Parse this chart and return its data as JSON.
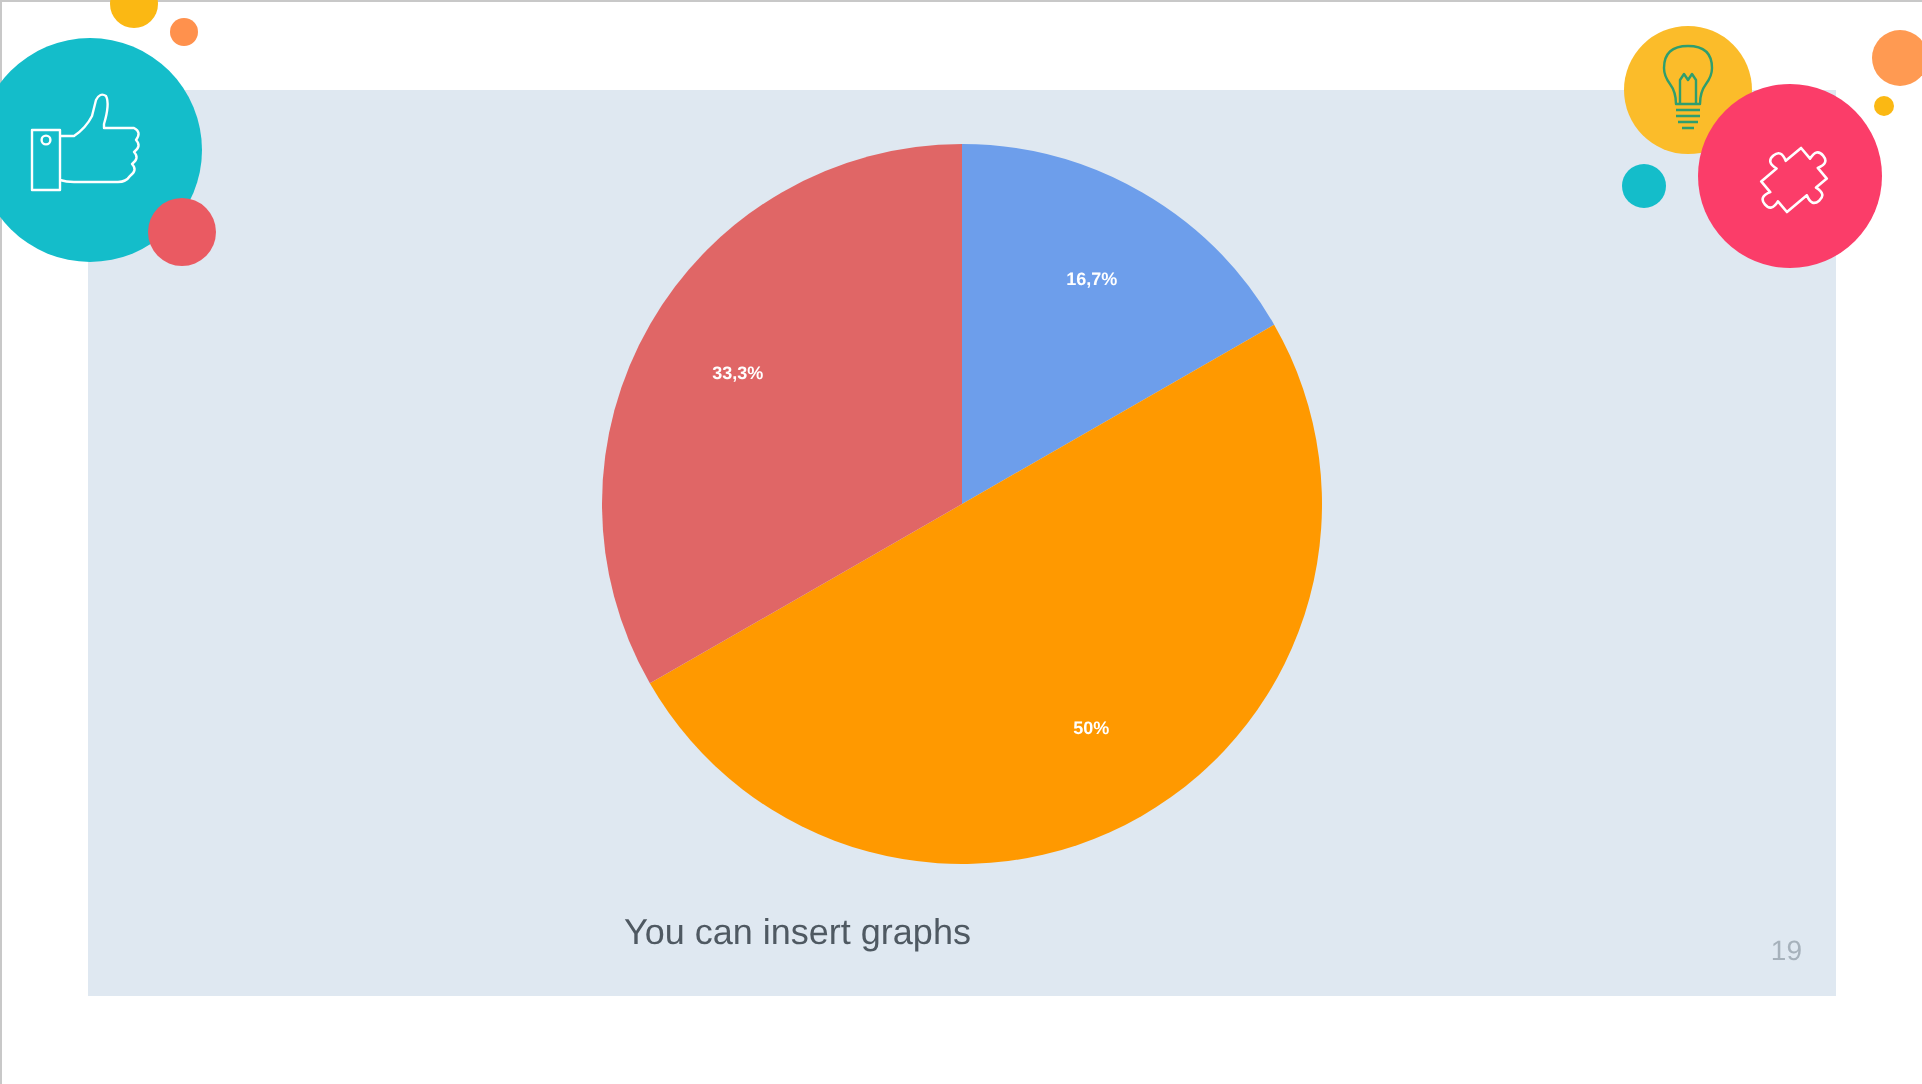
{
  "chart_data": {
    "type": "pie",
    "categories": [
      null,
      null,
      null
    ],
    "values": [
      16.7,
      50,
      33.3
    ],
    "colors": [
      "#6d9eeb",
      "#ff9900",
      "#e06666"
    ],
    "value_labels": [
      "16,7%",
      "50%",
      "33,3%"
    ],
    "annotations": [
      "You can insert graphs",
      "19"
    ]
  }
}
